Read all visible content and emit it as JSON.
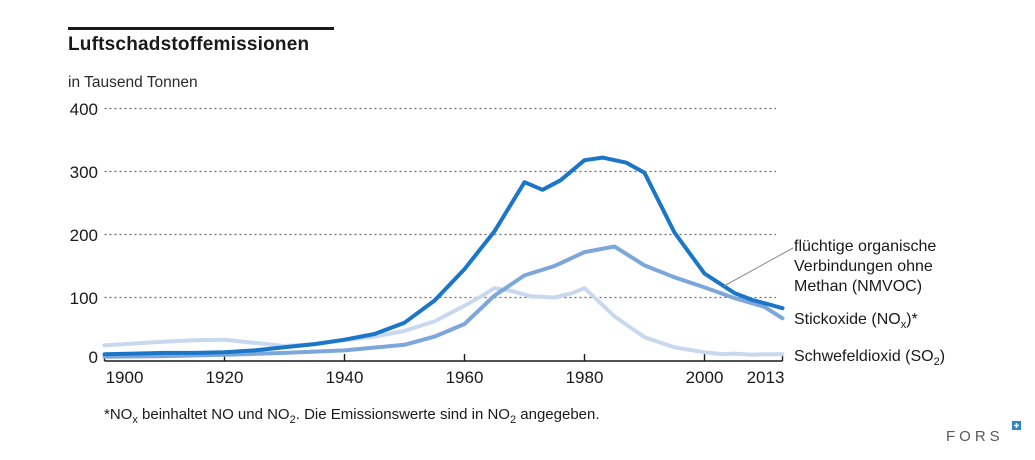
{
  "header": {
    "title": "Luftschadstoffemissionen",
    "unit_label": "in Tausend Tonnen"
  },
  "chart_data": {
    "type": "line",
    "title": "Luftschadstoffemissionen",
    "ylabel": "in Tausend Tonnen",
    "ylim": [
      0,
      400
    ],
    "yticks": [
      0,
      100,
      200,
      300,
      400
    ],
    "xlim": [
      1900,
      2013
    ],
    "xticks": [
      {
        "label": "1900",
        "year": 1900,
        "dx": 20
      },
      {
        "label": "1920",
        "year": 1920,
        "dx": 0
      },
      {
        "label": "1940",
        "year": 1940,
        "dx": 0
      },
      {
        "label": "1960",
        "year": 1960,
        "dx": 0
      },
      {
        "label": "1980",
        "year": 1980,
        "dx": 0
      },
      {
        "label": "2000",
        "year": 2000,
        "dx": 0
      },
      {
        "label": "2013",
        "year": 2013,
        "dx": -17
      }
    ],
    "grid": "horizontal dashed",
    "legend_position": "right",
    "series": [
      {
        "name": "flüchtige organische Verbindungen ohne Methan (NMVOC)",
        "color": "#1b76c8",
        "width": 4,
        "points": [
          [
            1900,
            10
          ],
          [
            1905,
            11
          ],
          [
            1910,
            12
          ],
          [
            1915,
            12
          ],
          [
            1920,
            13
          ],
          [
            1925,
            16
          ],
          [
            1930,
            21
          ],
          [
            1935,
            26
          ],
          [
            1940,
            33
          ],
          [
            1945,
            42
          ],
          [
            1950,
            60
          ],
          [
            1955,
            95
          ],
          [
            1960,
            145
          ],
          [
            1965,
            205
          ],
          [
            1970,
            283
          ],
          [
            1973,
            271
          ],
          [
            1976,
            286
          ],
          [
            1980,
            318
          ],
          [
            1983,
            322
          ],
          [
            1987,
            314
          ],
          [
            1990,
            298
          ],
          [
            1995,
            203
          ],
          [
            2000,
            138
          ],
          [
            2005,
            107
          ],
          [
            2008,
            96
          ],
          [
            2010,
            91
          ],
          [
            2013,
            83
          ]
        ]
      },
      {
        "name": "Stickoxide (NOx)*",
        "color": "#7da7da",
        "width": 4,
        "points": [
          [
            1900,
            6
          ],
          [
            1910,
            7
          ],
          [
            1920,
            9
          ],
          [
            1930,
            12
          ],
          [
            1940,
            16
          ],
          [
            1950,
            25
          ],
          [
            1955,
            38
          ],
          [
            1960,
            58
          ],
          [
            1965,
            103
          ],
          [
            1970,
            135
          ],
          [
            1975,
            150
          ],
          [
            1980,
            172
          ],
          [
            1985,
            181
          ],
          [
            1990,
            151
          ],
          [
            1995,
            132
          ],
          [
            2000,
            116
          ],
          [
            2005,
            99
          ],
          [
            2010,
            85
          ],
          [
            2013,
            67
          ]
        ]
      },
      {
        "name": "Schwefeldioxid (SO2)",
        "color": "#c8d8ee",
        "width": 4,
        "points": [
          [
            1900,
            24
          ],
          [
            1905,
            27
          ],
          [
            1910,
            30
          ],
          [
            1915,
            32
          ],
          [
            1920,
            33
          ],
          [
            1925,
            28
          ],
          [
            1930,
            23
          ],
          [
            1935,
            26
          ],
          [
            1940,
            32
          ],
          [
            1945,
            38
          ],
          [
            1950,
            47
          ],
          [
            1955,
            62
          ],
          [
            1960,
            87
          ],
          [
            1963,
            103
          ],
          [
            1965,
            115
          ],
          [
            1968,
            110
          ],
          [
            1971,
            102
          ],
          [
            1975,
            100
          ],
          [
            1978,
            107
          ],
          [
            1980,
            115
          ],
          [
            1985,
            70
          ],
          [
            1990,
            37
          ],
          [
            1995,
            21
          ],
          [
            2000,
            13
          ],
          [
            2003,
            10
          ],
          [
            2005,
            11
          ],
          [
            2008,
            9
          ],
          [
            2010,
            10
          ],
          [
            2013,
            10
          ]
        ]
      }
    ]
  },
  "legend": {
    "nmvoc": {
      "text": "flüchtige organische\nVerbindungen ohne\nMethan (NMVOC)"
    },
    "nox": {
      "pre": "Stickoxide (NO",
      "sub": "x",
      "post": ")*"
    },
    "so2": {
      "pre": "Schwefeldioxid (SO",
      "sub": "2",
      "post": ")"
    }
  },
  "footnote": {
    "p1": "*NO",
    "s1": "x",
    "p2": " beinhaltet NO und NO",
    "s2": "2",
    "p3": ". Die Emissionswerte sind in NO",
    "s3": "2",
    "p4": " angegeben."
  },
  "logo": {
    "text": "FORS",
    "square_color": "#2f84c4"
  }
}
